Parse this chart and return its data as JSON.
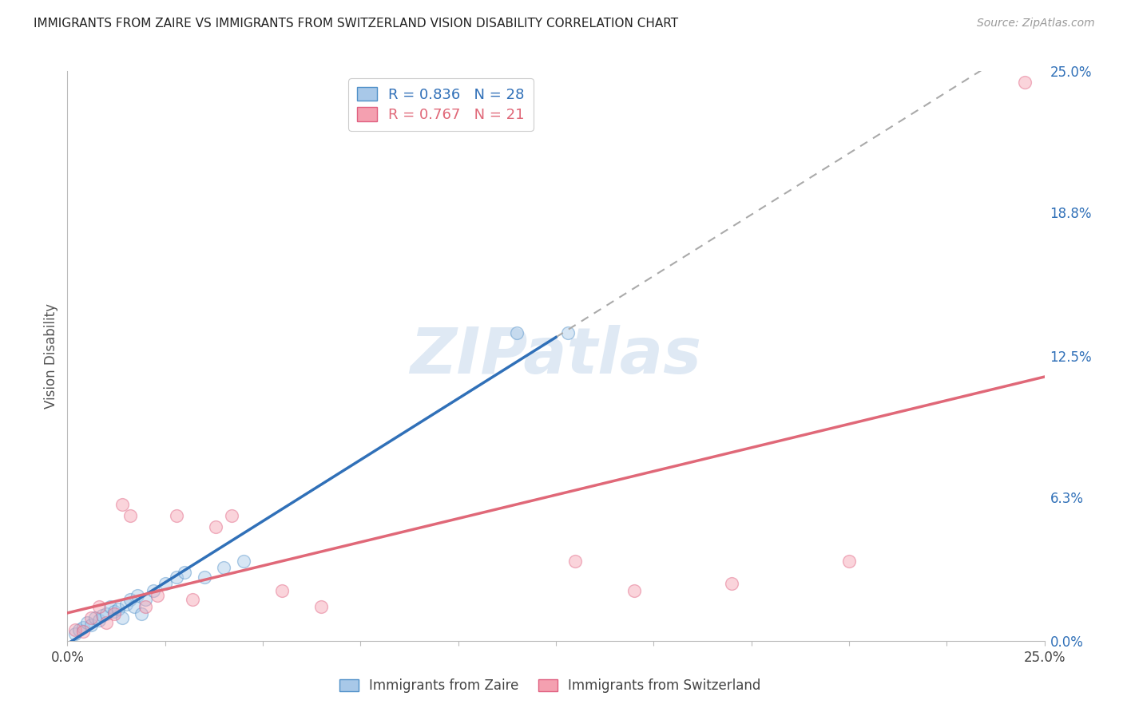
{
  "title": "IMMIGRANTS FROM ZAIRE VS IMMIGRANTS FROM SWITZERLAND VISION DISABILITY CORRELATION CHART",
  "source": "Source: ZipAtlas.com",
  "ylabel": "Vision Disability",
  "ytick_labels": [
    "0.0%",
    "6.3%",
    "12.5%",
    "18.8%",
    "25.0%"
  ],
  "ytick_values": [
    0.0,
    6.3,
    12.5,
    18.8,
    25.0
  ],
  "xtick_values": [
    0.0,
    2.5,
    5.0,
    7.5,
    10.0,
    12.5,
    15.0,
    17.5,
    20.0,
    22.5,
    25.0
  ],
  "legend_r_zaire": "R = 0.836",
  "legend_n_zaire": "N = 28",
  "legend_r_swiss": "R = 0.767",
  "legend_n_swiss": "N = 21",
  "watermark": "ZIPatlas",
  "zaire_color": "#a8c8e8",
  "swiss_color": "#f4a0b0",
  "zaire_edge_color": "#5090c8",
  "swiss_edge_color": "#e06080",
  "zaire_line_color": "#3070b8",
  "swiss_line_color": "#e06878",
  "dash_line_color": "#aaaaaa",
  "zaire_line_end_x": 12.5,
  "zaire_scatter_x": [
    0.2,
    0.3,
    0.4,
    0.5,
    0.6,
    0.7,
    0.8,
    0.9,
    1.0,
    1.1,
    1.2,
    1.3,
    1.4,
    1.5,
    1.6,
    1.7,
    1.8,
    1.9,
    2.0,
    2.2,
    2.5,
    2.8,
    3.0,
    3.5,
    4.0,
    4.5,
    11.5,
    12.8
  ],
  "zaire_scatter_y": [
    0.3,
    0.5,
    0.6,
    0.8,
    0.7,
    1.0,
    0.9,
    1.1,
    1.2,
    1.5,
    1.3,
    1.4,
    1.0,
    1.6,
    1.8,
    1.5,
    2.0,
    1.2,
    1.8,
    2.2,
    2.5,
    2.8,
    3.0,
    2.8,
    3.2,
    3.5,
    13.5,
    13.5
  ],
  "swiss_scatter_x": [
    0.2,
    0.4,
    0.6,
    0.8,
    1.0,
    1.2,
    1.4,
    1.6,
    2.0,
    2.3,
    2.8,
    3.2,
    3.8,
    4.2,
    5.5,
    6.5,
    13.0,
    14.5,
    17.0,
    20.0,
    24.5
  ],
  "swiss_scatter_y": [
    0.5,
    0.4,
    1.0,
    1.5,
    0.8,
    1.2,
    6.0,
    5.5,
    1.5,
    2.0,
    5.5,
    1.8,
    5.0,
    5.5,
    2.2,
    1.5,
    3.5,
    2.2,
    2.5,
    3.5,
    24.5
  ],
  "xlim": [
    0,
    25
  ],
  "ylim": [
    0,
    25
  ],
  "background_color": "#ffffff",
  "grid_color": "#cccccc"
}
